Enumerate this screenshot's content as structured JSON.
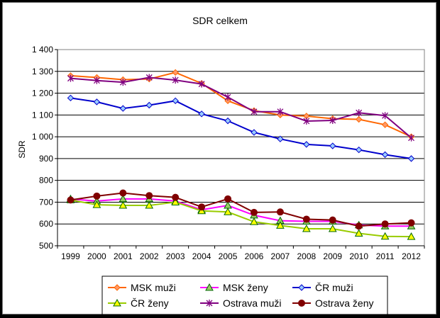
{
  "chart_data": {
    "type": "line",
    "title": "SDR celkem",
    "xlabel": "",
    "ylabel": "SDR",
    "ylim": [
      500,
      1400
    ],
    "yticks": [
      500,
      600,
      700,
      800,
      900,
      1000,
      1100,
      1200,
      1300,
      1400
    ],
    "ytick_labels": [
      "500",
      "600",
      "700",
      "800",
      "900",
      "1 000",
      "1 100",
      "1 200",
      "1 300",
      "1 400"
    ],
    "categories": [
      "1999",
      "2000",
      "2001",
      "2002",
      "2003",
      "2004",
      "2005",
      "2006",
      "2007",
      "2008",
      "2009",
      "2010",
      "2011",
      "2012"
    ],
    "grid": "horizontal",
    "legend_position": "bottom",
    "series": [
      {
        "name": "MSK muži",
        "color": "#FF6600",
        "marker": "diamond",
        "marker_fill": "#FF9966",
        "values": [
          1280,
          1272,
          1262,
          1265,
          1295,
          1245,
          1165,
          1120,
          1100,
          1095,
          1083,
          1080,
          1055,
          1000
        ]
      },
      {
        "name": "MSK ženy",
        "color": "#FF00FF",
        "marker": "triangle",
        "marker_fill": "#99CC66",
        "values": [
          715,
          705,
          715,
          715,
          705,
          665,
          685,
          640,
          615,
          612,
          612,
          595,
          590,
          590
        ]
      },
      {
        "name": "ČR muži",
        "color": "#0000CC",
        "marker": "diamond",
        "marker_fill": "#99CCFF",
        "values": [
          1178,
          1160,
          1130,
          1145,
          1165,
          1105,
          1073,
          1020,
          990,
          965,
          958,
          940,
          918,
          900
        ]
      },
      {
        "name": "ČR ženy",
        "color": "#99CC00",
        "marker": "triangle",
        "marker_fill": "#FFFF00",
        "values": [
          710,
          688,
          685,
          685,
          700,
          660,
          655,
          610,
          593,
          578,
          578,
          557,
          543,
          542
        ]
      },
      {
        "name": "Ostrava muži",
        "color": "#800080",
        "marker": "asterisk",
        "marker_fill": "#800080",
        "values": [
          1268,
          1258,
          1250,
          1272,
          1260,
          1242,
          1182,
          1115,
          1115,
          1072,
          1075,
          1110,
          1097,
          995
        ]
      },
      {
        "name": "Ostrava ženy",
        "color": "#800000",
        "marker": "circle",
        "marker_fill": "#800000",
        "values": [
          710,
          728,
          742,
          730,
          722,
          678,
          715,
          653,
          655,
          622,
          618,
          590,
          600,
          605
        ]
      }
    ]
  }
}
